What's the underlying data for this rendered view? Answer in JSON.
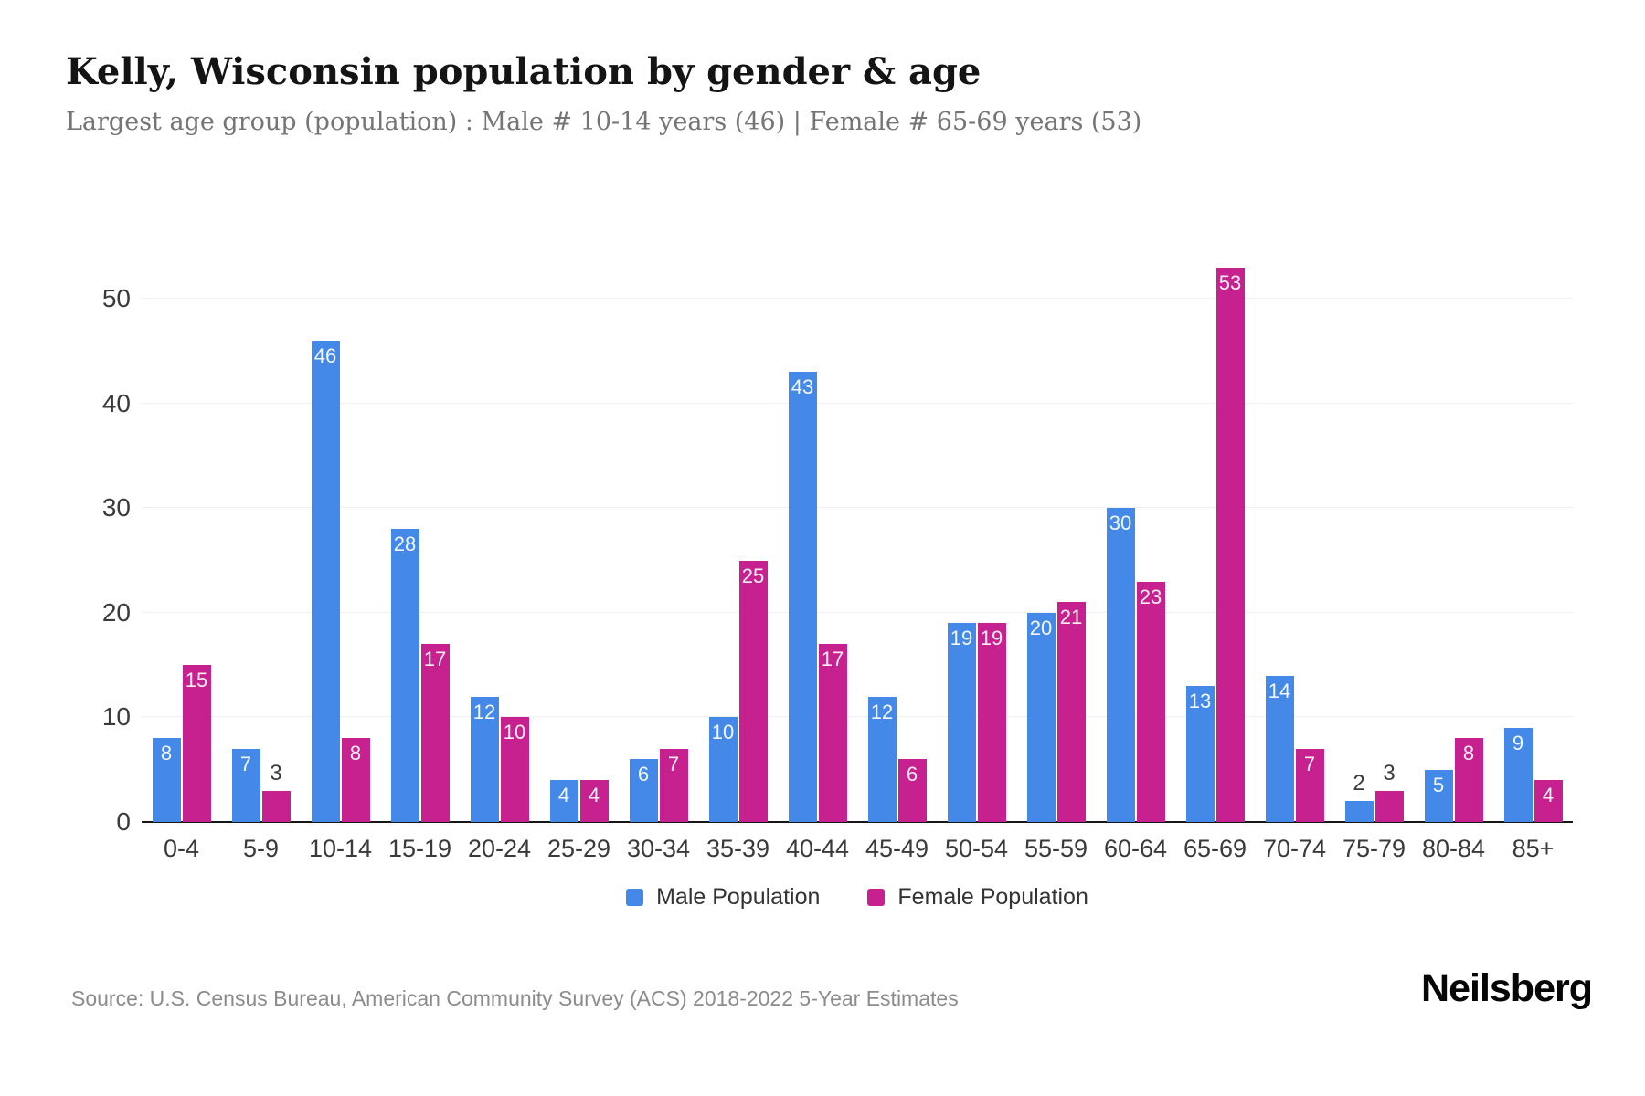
{
  "header": {
    "title": "Kelly, Wisconsin population by gender & age",
    "subtitle": "Largest age group (population) : Male # 10-14 years (46) | Female # 65-69 years (53)"
  },
  "colors": {
    "male": "#4589E8",
    "female": "#C7218F",
    "grid": "#efefef",
    "axis": "#161616",
    "tick_text": "#3a3a3a",
    "bar_label_in": "#f4f2f8",
    "bar_label_out": "#3d3d3d"
  },
  "chart_data": {
    "type": "bar",
    "title": "Kelly, Wisconsin population by gender & age",
    "xlabel": "",
    "ylabel": "",
    "categories": [
      "0-4",
      "5-9",
      "10-14",
      "15-19",
      "20-24",
      "25-29",
      "30-34",
      "35-39",
      "40-44",
      "45-49",
      "50-54",
      "55-59",
      "60-64",
      "65-69",
      "70-74",
      "75-79",
      "80-84",
      "85+"
    ],
    "series": [
      {
        "name": "Male Population",
        "color_key": "male",
        "values": [
          8,
          7,
          46,
          28,
          12,
          4,
          6,
          10,
          43,
          12,
          19,
          20,
          30,
          13,
          14,
          2,
          5,
          9
        ]
      },
      {
        "name": "Female Population",
        "color_key": "female",
        "values": [
          15,
          3,
          8,
          17,
          10,
          4,
          7,
          25,
          17,
          6,
          19,
          21,
          23,
          53,
          7,
          3,
          8,
          4
        ]
      }
    ],
    "ylim": [
      0,
      55
    ],
    "yticks": [
      0,
      10,
      20,
      30,
      40,
      50
    ],
    "grid": true,
    "legend_position": "bottom",
    "value_labels": true
  },
  "footer": {
    "source": "Source: U.S. Census Bureau, American Community Survey (ACS) 2018-2022 5-Year Estimates",
    "logo": "Neilsberg"
  }
}
